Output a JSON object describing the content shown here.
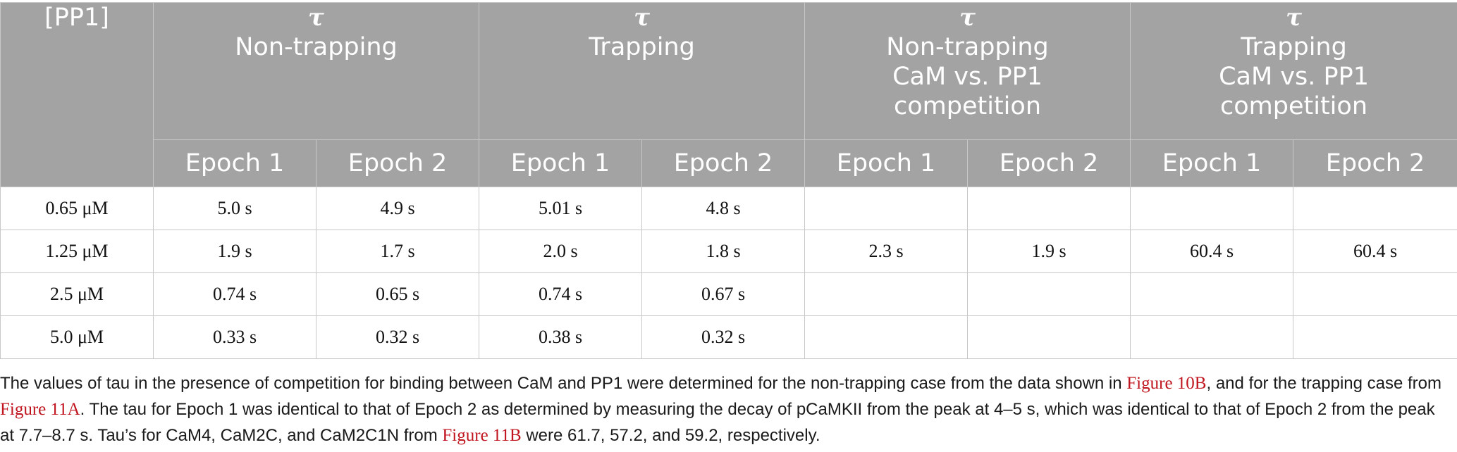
{
  "header": {
    "pp1_label": "[PP1]",
    "tau_symbol": "τ",
    "groups": [
      {
        "lines": [
          "Non-trapping"
        ]
      },
      {
        "lines": [
          "Trapping"
        ]
      },
      {
        "lines": [
          "Non-trapping",
          "CaM vs. PP1",
          "competition"
        ]
      },
      {
        "lines": [
          "Trapping",
          "CaM vs. PP1",
          "competition"
        ]
      }
    ],
    "epoch1": "Epoch 1",
    "epoch2": "Epoch 2"
  },
  "rows": [
    {
      "pp1": "0.65 μM",
      "values": [
        "5.0 s",
        "4.9 s",
        "5.01 s",
        "4.8 s",
        "",
        "",
        "",
        ""
      ]
    },
    {
      "pp1": "1.25 μM",
      "values": [
        "1.9 s",
        "1.7 s",
        "2.0 s",
        "1.8 s",
        "2.3 s",
        "1.9 s",
        "60.4 s",
        "60.4 s"
      ]
    },
    {
      "pp1": "2.5 μM",
      "values": [
        "0.74 s",
        "0.65 s",
        "0.74 s",
        "0.67 s",
        "",
        "",
        "",
        ""
      ]
    },
    {
      "pp1": "5.0 μM",
      "values": [
        "0.33 s",
        "0.32 s",
        "0.38 s",
        "0.32 s",
        "",
        "",
        "",
        ""
      ]
    }
  ],
  "footnote": {
    "t1": "The values of tau in the presence of competition for binding between CaM and PP1 were determined for the non-trapping case from the data shown in ",
    "ref1": "Figure 10B",
    "t2": ", and for the trapping case from ",
    "ref2": "Figure 11A",
    "t3": ". The tau for Epoch 1 was identical to that of Epoch 2 as determined by measuring the decay of pCaMKII from the peak at 4–5 s, which was identical to that of Epoch 2 from the peak at 7.7–8.7 s. Tau’s for CaM4, CaM2C, and CaM2C1N from ",
    "ref3": "Figure 11B",
    "t4": " were 61.7, 57.2, and 59.2, respectively."
  },
  "colors": {
    "header_bg": "#a3a3a3",
    "header_text": "#ffffff",
    "grid_lines": "#c8c8c8",
    "link_red": "#c0141e"
  }
}
